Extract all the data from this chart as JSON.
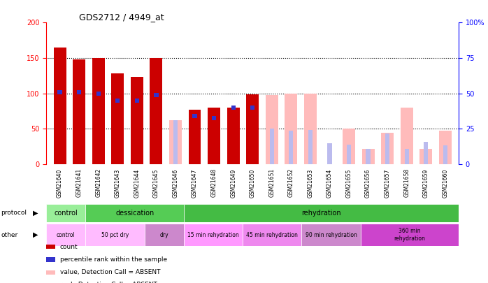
{
  "title": "GDS2712 / 4949_at",
  "samples": [
    "GSM21640",
    "GSM21641",
    "GSM21642",
    "GSM21643",
    "GSM21644",
    "GSM21645",
    "GSM21646",
    "GSM21647",
    "GSM21648",
    "GSM21649",
    "GSM21650",
    "GSM21651",
    "GSM21652",
    "GSM21653",
    "GSM21654",
    "GSM21655",
    "GSM21656",
    "GSM21657",
    "GSM21658",
    "GSM21659",
    "GSM21660"
  ],
  "count_values": [
    165,
    148,
    150,
    128,
    123,
    150,
    0,
    77,
    80,
    80,
    99,
    0,
    0,
    0,
    0,
    0,
    0,
    0,
    0,
    0,
    0
  ],
  "rank_values": [
    102,
    102,
    100,
    90,
    90,
    98,
    0,
    68,
    65,
    80,
    80,
    0,
    0,
    0,
    0,
    0,
    0,
    0,
    0,
    0,
    0
  ],
  "absent_value": [
    0,
    0,
    0,
    0,
    0,
    0,
    62,
    0,
    0,
    0,
    0,
    98,
    100,
    100,
    0,
    50,
    22,
    44,
    80,
    22,
    47
  ],
  "absent_rank": [
    0,
    0,
    0,
    0,
    0,
    0,
    62,
    0,
    0,
    0,
    0,
    50,
    47,
    48,
    30,
    28,
    22,
    43,
    22,
    32,
    27
  ],
  "count_color": "#cc0000",
  "rank_color": "#3333cc",
  "absent_value_color": "#ffbbbb",
  "absent_rank_color": "#bbbbee",
  "ylim_left": [
    0,
    200
  ],
  "ylim_right": [
    0,
    100
  ],
  "yticks_left": [
    0,
    50,
    100,
    150,
    200
  ],
  "yticks_right": [
    0,
    25,
    50,
    75,
    100
  ],
  "protocol_groups": [
    {
      "label": "control",
      "start": 0,
      "end": 2,
      "color": "#99ee99"
    },
    {
      "label": "dessication",
      "start": 2,
      "end": 7,
      "color": "#55cc55"
    },
    {
      "label": "rehydration",
      "start": 7,
      "end": 21,
      "color": "#44bb44"
    }
  ],
  "other_groups": [
    {
      "label": "control",
      "start": 0,
      "end": 2,
      "color": "#ffbbff"
    },
    {
      "label": "50 pct dry",
      "start": 2,
      "end": 5,
      "color": "#ffbbff"
    },
    {
      "label": "dry",
      "start": 5,
      "end": 7,
      "color": "#cc88cc"
    },
    {
      "label": "15 min rehydration",
      "start": 7,
      "end": 10,
      "color": "#ff99ff"
    },
    {
      "label": "45 min rehydration",
      "start": 10,
      "end": 13,
      "color": "#ee88ee"
    },
    {
      "label": "90 min rehydration",
      "start": 13,
      "end": 16,
      "color": "#cc88cc"
    },
    {
      "label": "360 min\nrehydration",
      "start": 16,
      "end": 21,
      "color": "#cc44cc"
    }
  ],
  "legend_items": [
    {
      "label": "count",
      "color": "#cc0000"
    },
    {
      "label": "percentile rank within the sample",
      "color": "#3333cc"
    },
    {
      "label": "value, Detection Call = ABSENT",
      "color": "#ffbbbb"
    },
    {
      "label": "rank, Detection Call = ABSENT",
      "color": "#bbbbee"
    }
  ],
  "background_color": "#ffffff",
  "xaxis_bg": "#cccccc",
  "plot_bg_color": "#ffffff"
}
